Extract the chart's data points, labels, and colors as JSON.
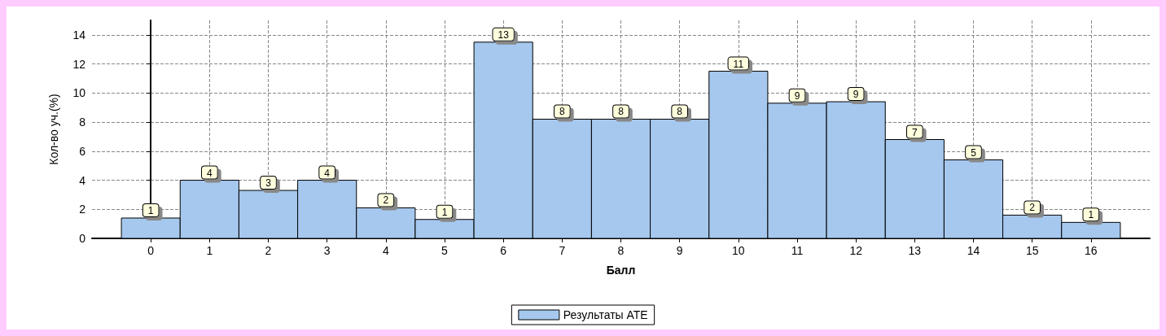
{
  "chart_data": {
    "type": "histogram",
    "xlabel": "Балл",
    "ylabel": "Кол-во уч.(%)",
    "bins": [
      -0.5,
      0.5,
      1.5,
      2.5,
      3.5,
      4.5,
      5.5,
      6.5,
      7.5,
      8.5,
      9.5,
      10.5,
      11.5,
      12.5,
      13.5,
      14.5,
      15.5,
      16.5
    ],
    "series": [
      {
        "name": "Результаты АТЕ",
        "color": "#a6c8ee",
        "values": [
          1.4,
          4.0,
          3.3,
          4.0,
          2.1,
          1.3,
          13.5,
          8.2,
          8.2,
          8.2,
          11.5,
          9.3,
          9.4,
          6.8,
          5.4,
          1.6,
          1.1
        ],
        "value_labels": [
          "1",
          "4",
          "3",
          "4",
          "2",
          "1",
          "13",
          "8",
          "8",
          "8",
          "11",
          "9",
          "9",
          "7",
          "5",
          "2",
          "1"
        ]
      }
    ],
    "xlim": [
      -1,
      17
    ],
    "xticks": [
      0,
      1,
      2,
      3,
      4,
      5,
      6,
      7,
      8,
      9,
      10,
      11,
      12,
      13,
      14,
      15,
      16
    ],
    "ylim": [
      0,
      15
    ],
    "yticks": [
      0,
      2,
      4,
      6,
      8,
      10,
      12,
      14
    ],
    "grid": true,
    "legend": "bottom"
  }
}
